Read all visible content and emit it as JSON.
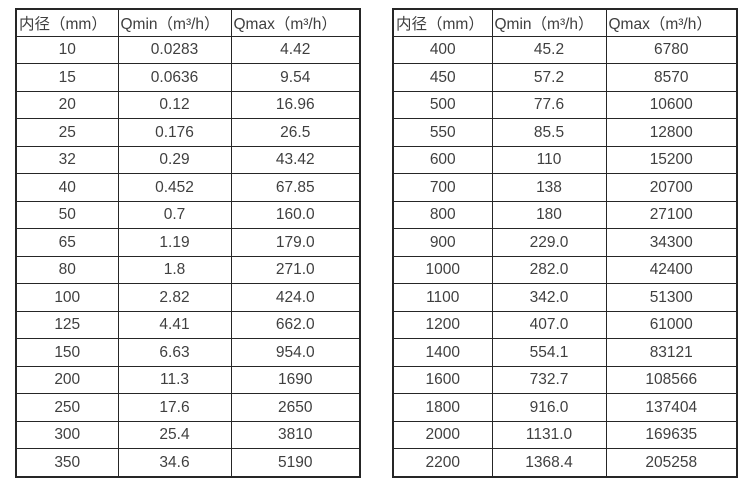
{
  "colors": {
    "background": "#ffffff",
    "border": "#262626",
    "text": "#3f3f3f"
  },
  "tables": [
    {
      "name": "flow-rate-table-small-diameters",
      "headers": [
        "内径（mm）",
        "Qmin（m³/h）",
        "Qmax（m³/h）"
      ],
      "rows": [
        [
          "10",
          "0.0283",
          "4.42"
        ],
        [
          "15",
          "0.0636",
          "9.54"
        ],
        [
          "20",
          "0.12",
          "16.96"
        ],
        [
          "25",
          "0.176",
          "26.5"
        ],
        [
          "32",
          "0.29",
          "43.42"
        ],
        [
          "40",
          "0.452",
          "67.85"
        ],
        [
          "50",
          "0.7",
          "160.0"
        ],
        [
          "65",
          "1.19",
          "179.0"
        ],
        [
          "80",
          "1.8",
          "271.0"
        ],
        [
          "100",
          "2.82",
          "424.0"
        ],
        [
          "125",
          "4.41",
          "662.0"
        ],
        [
          "150",
          "6.63",
          "954.0"
        ],
        [
          "200",
          "11.3",
          "1690"
        ],
        [
          "250",
          "17.6",
          "2650"
        ],
        [
          "300",
          "25.4",
          "3810"
        ],
        [
          "350",
          "34.6",
          "5190"
        ]
      ]
    },
    {
      "name": "flow-rate-table-large-diameters",
      "headers": [
        "内径（mm）",
        "Qmin（m³/h）",
        "Qmax（m³/h）"
      ],
      "rows": [
        [
          "400",
          "45.2",
          "6780"
        ],
        [
          "450",
          "57.2",
          "8570"
        ],
        [
          "500",
          "77.6",
          "10600"
        ],
        [
          "550",
          "85.5",
          "12800"
        ],
        [
          "600",
          "110",
          "15200"
        ],
        [
          "700",
          "138",
          "20700"
        ],
        [
          "800",
          "180",
          "27100"
        ],
        [
          "900",
          "229.0",
          "34300"
        ],
        [
          "1000",
          "282.0",
          "42400"
        ],
        [
          "1100",
          "342.0",
          "51300"
        ],
        [
          "1200",
          "407.0",
          "61000"
        ],
        [
          "1400",
          "554.1",
          "83121"
        ],
        [
          "1600",
          "732.7",
          "108566"
        ],
        [
          "1800",
          "916.0",
          "137404"
        ],
        [
          "2000",
          "1131.0",
          "169635"
        ],
        [
          "2200",
          "1368.4",
          "205258"
        ]
      ]
    }
  ]
}
